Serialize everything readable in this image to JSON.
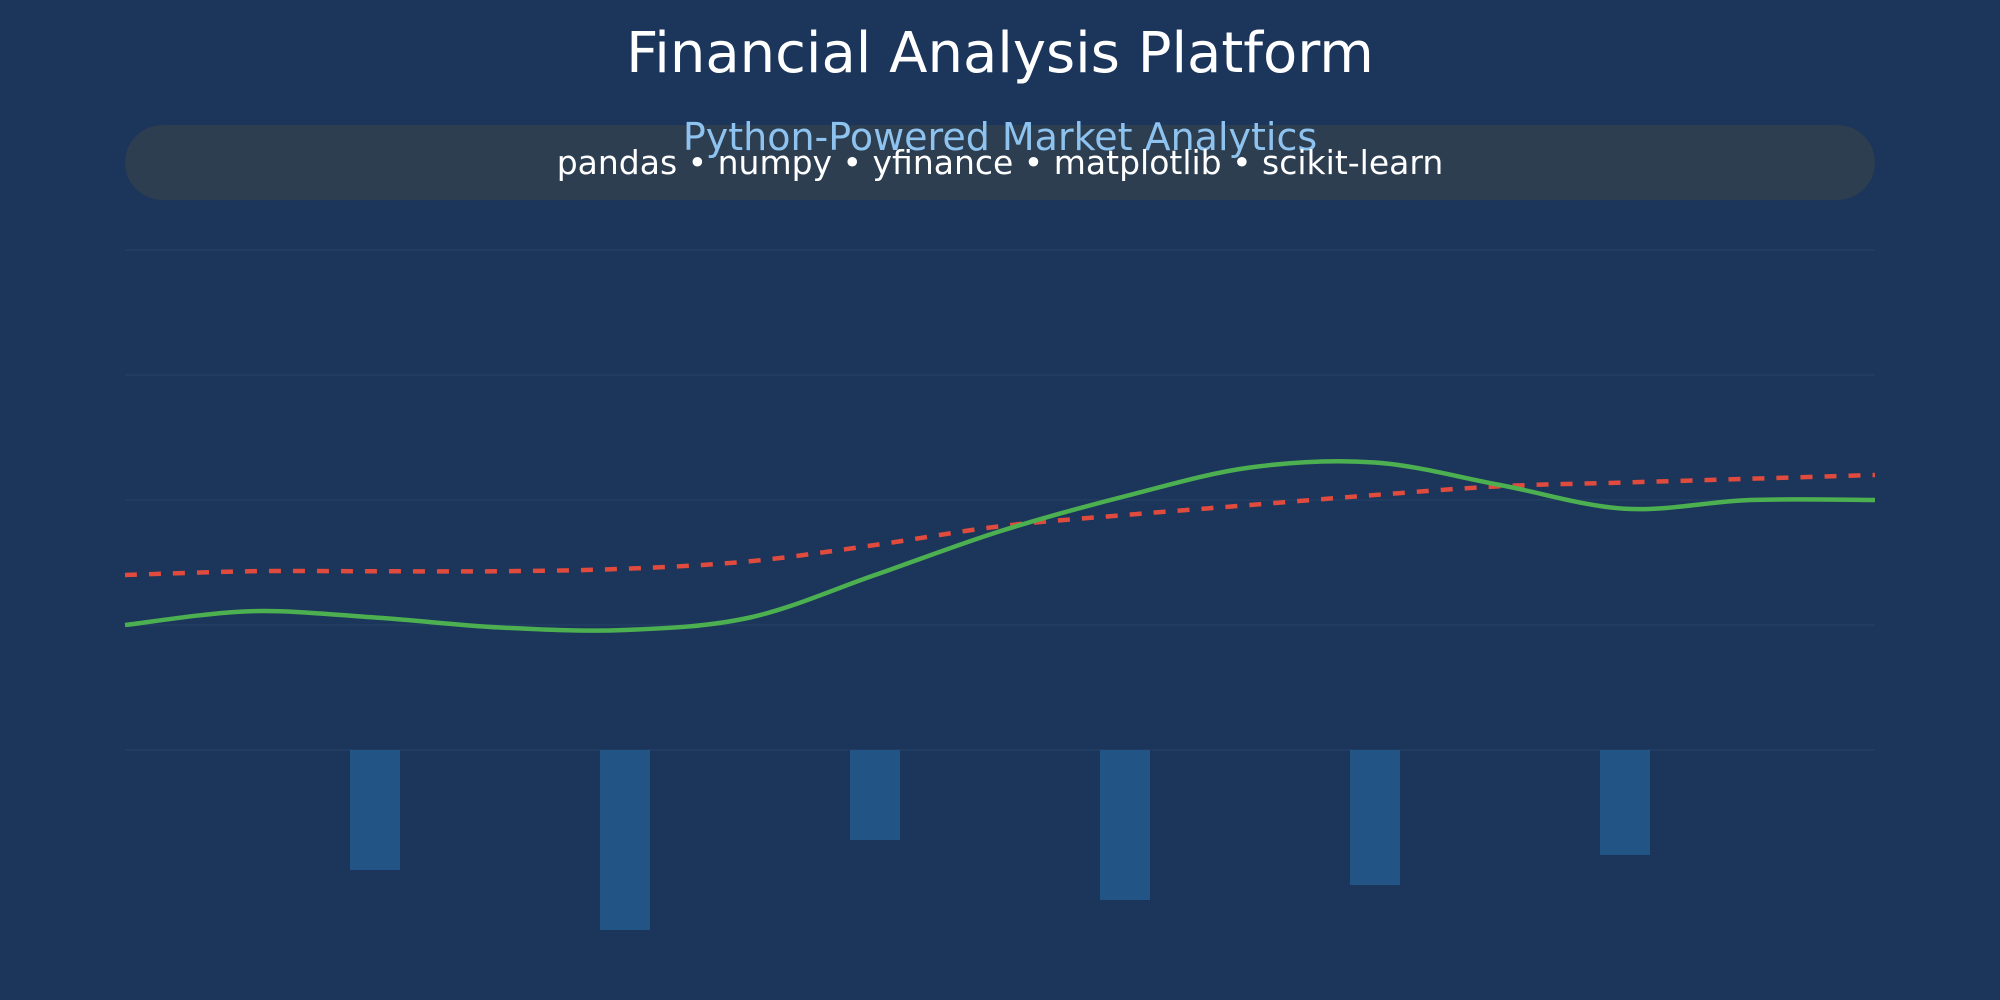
{
  "header": {
    "title": "Financial Analysis Platform",
    "subtitle": "Python-Powered Market Analytics",
    "libraries": "pandas • numpy • yfinance • matplotlib • scikit-learn"
  },
  "colors": {
    "background": "#1b355b",
    "banner": "#2d3e51",
    "subtitle": "#8ec3f0",
    "gridline": "#233f63",
    "price_line": "#4caf50",
    "trend_line": "#e04b3d",
    "volume_bar": "#225486"
  },
  "chart_data": {
    "type": "line",
    "grid": true,
    "x": [
      0,
      0.5,
      1,
      1.5,
      2,
      2.5,
      3,
      3.5,
      4,
      4.5,
      5,
      5.5,
      6,
      6.5,
      7
    ],
    "ylim": [
      0,
      4
    ],
    "series": [
      {
        "style": "solid",
        "color": "#4caf50",
        "values": [
          1.0,
          1.11,
          1.06,
          0.98,
          0.96,
          1.06,
          1.4,
          1.75,
          2.03,
          2.26,
          2.3,
          2.12,
          1.93,
          2.0,
          2.0
        ]
      },
      {
        "style": "dashed",
        "color": "#e04b3d",
        "values": [
          1.4,
          1.43,
          1.43,
          1.43,
          1.45,
          1.51,
          1.64,
          1.79,
          1.88,
          1.96,
          2.04,
          2.11,
          2.14,
          2.17,
          2.2
        ]
      }
    ],
    "bars": {
      "color": "#225486",
      "x": [
        1,
        2,
        3,
        4,
        5,
        6
      ],
      "values": [
        0.8,
        1.2,
        0.6,
        1.0,
        0.9,
        0.7
      ]
    }
  }
}
